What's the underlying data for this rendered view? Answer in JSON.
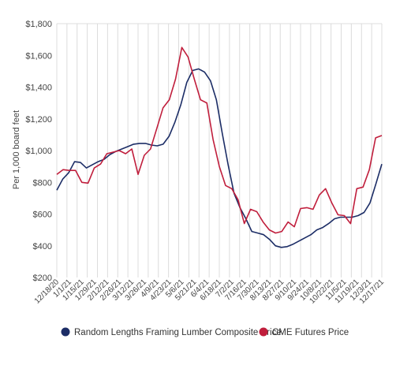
{
  "chart_data": {
    "type": "line",
    "title": "",
    "xlabel": "",
    "ylabel": "Per 1,000 board feet",
    "ylim": [
      200,
      1800
    ],
    "yticks": [
      200,
      400,
      600,
      800,
      1000,
      1200,
      1400,
      1600,
      1800
    ],
    "ytick_labels": [
      "$200",
      "$400",
      "$600",
      "$800",
      "$1,000",
      "$1,200",
      "$1,400",
      "$1,600",
      "$1,800"
    ],
    "grid": "vertical",
    "legend_position": "bottom",
    "x_labels": [
      "12/18/20",
      "1/1/21",
      "1/15/21",
      "1/29/21",
      "2/12/21",
      "2/26/21",
      "3/12/21",
      "3/26/21",
      "4/9/21",
      "4/23/21",
      "5/6/21",
      "5/21/21",
      "6/4/21",
      "6/18/21",
      "7/2/21",
      "7/16/21",
      "7/30/21",
      "8/13/21",
      "8/27/21",
      "9/10/21",
      "9/24/21",
      "10/8/21",
      "10/22/21",
      "11/5/21",
      "11/19/21",
      "12/3/21",
      "12/17/21"
    ],
    "series": [
      {
        "name": "Random Lengths Framing Lumber Composite Price",
        "color": "#1c2d66",
        "values": [
          750,
          820,
          860,
          930,
          925,
          890,
          910,
          930,
          945,
          975,
          995,
          1010,
          1025,
          1040,
          1045,
          1045,
          1035,
          1030,
          1040,
          1090,
          1180,
          1290,
          1430,
          1505,
          1515,
          1495,
          1440,
          1320,
          1110,
          910,
          730,
          640,
          570,
          490,
          480,
          470,
          440,
          400,
          390,
          395,
          410,
          430,
          450,
          470,
          500,
          515,
          540,
          570,
          580,
          580,
          580,
          590,
          610,
          670,
          790,
          915
        ]
      },
      {
        "name": "CME Futures Price",
        "color": "#c01e3c",
        "values": [
          850,
          880,
          875,
          875,
          800,
          795,
          890,
          915,
          980,
          990,
          1000,
          980,
          1010,
          850,
          970,
          1010,
          1140,
          1270,
          1320,
          1450,
          1650,
          1590,
          1450,
          1320,
          1300,
          1070,
          900,
          780,
          760,
          690,
          540,
          630,
          615,
          550,
          500,
          480,
          490,
          550,
          520,
          635,
          640,
          630,
          720,
          760,
          670,
          595,
          590,
          540,
          760,
          770,
          880,
          1080,
          1095
        ]
      }
    ]
  }
}
